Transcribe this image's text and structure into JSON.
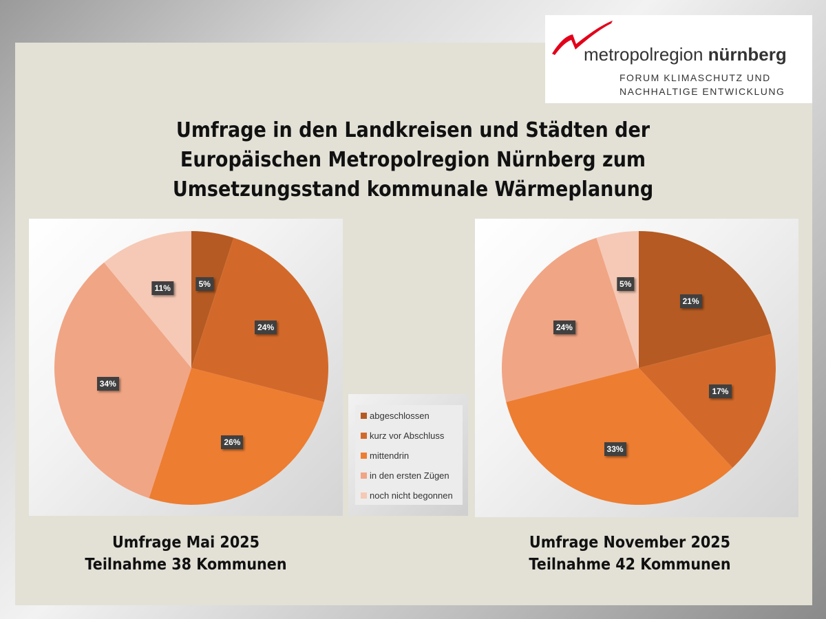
{
  "logo": {
    "name_regular": "metropolregion ",
    "name_bold": "nürnberg",
    "line1": "FORUM KLIMASCHUTZ UND",
    "line2": "NACHHALTIGE ENTWICKLUNG"
  },
  "title": [
    "Umfrage in den Landkreisen und Städten der",
    "Europäischen Metropolregion Nürnberg zum",
    "Umsetzungsstand kommunale Wärmeplanung"
  ],
  "captions": [
    {
      "line1": "Umfrage Mai 2025",
      "line2": "Teilnahme 38 Kommunen"
    },
    {
      "line1": "Umfrage November 2025",
      "line2": "Teilnahme 42 Kommunen"
    }
  ],
  "chart_data": [
    {
      "type": "pie",
      "title": "Umfrage Mai 2025",
      "categories": [
        "abgeschlossen",
        "kurz vor Abschluss",
        "mittendrin",
        "in den ersten Zügen",
        "noch nicht begonnen"
      ],
      "values": [
        5,
        24,
        26,
        34,
        11
      ],
      "labels": [
        "5%",
        "24%",
        "26%",
        "34%",
        "11%"
      ]
    },
    {
      "type": "pie",
      "title": "Umfrage November 2025",
      "categories": [
        "abgeschlossen",
        "kurz vor Abschluss",
        "mittendrin",
        "in den ersten Zügen",
        "noch nicht begonnen"
      ],
      "values": [
        21,
        17,
        33,
        24,
        5
      ],
      "labels": [
        "21%",
        "17%",
        "33%",
        "24%",
        "5%"
      ]
    }
  ],
  "legend": [
    "abgeschlossen",
    "kurz vor Abschluss",
    "mittendrin",
    "in den ersten Zügen",
    "noch nicht begonnen"
  ],
  "colors": [
    "#b55a22",
    "#d2692a",
    "#ed7d31",
    "#f0a585",
    "#f5c9b5"
  ],
  "logo_color": "#e2001a"
}
